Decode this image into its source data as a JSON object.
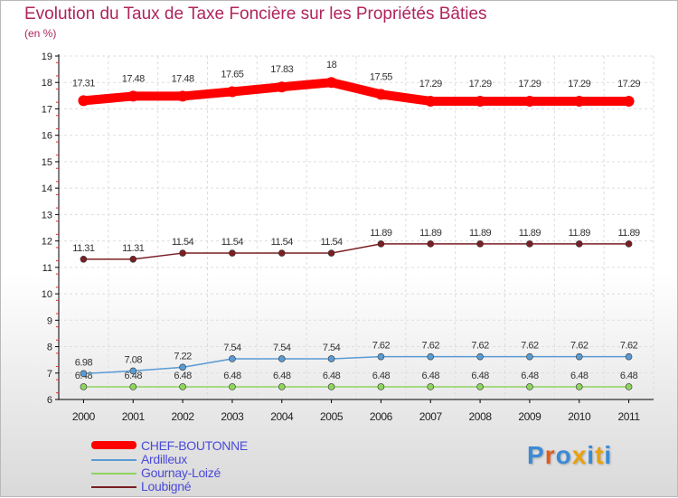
{
  "header": {
    "title": "Evolution du Taux de Taxe Foncière sur les Propriétés Bâties",
    "unit": "(en %)"
  },
  "chart_data": {
    "type": "line",
    "title": "Evolution du Taux de Taxe Foncière sur les Propriétés Bâties",
    "ylabel": "(en %)",
    "xlabel": "",
    "x": [
      "2000",
      "2001",
      "2002",
      "2003",
      "2004",
      "2005",
      "2006",
      "2007",
      "2008",
      "2009",
      "2010",
      "2011"
    ],
    "yticks": [
      "6",
      "7",
      "8",
      "9",
      "10",
      "11",
      "12",
      "13",
      "14",
      "15",
      "16",
      "17",
      "18",
      "19"
    ],
    "ylim": [
      6,
      19
    ],
    "grid": true,
    "legend_position": "bottom-left",
    "series": [
      {
        "name": "CHEF-BOUTONNE",
        "color": "#ff0000",
        "values": [
          17.31,
          17.48,
          17.48,
          17.65,
          17.83,
          18,
          17.55,
          17.29,
          17.29,
          17.29,
          17.29,
          17.29
        ],
        "labels": [
          "17.31",
          "17.48",
          "17.48",
          "17.65",
          "17.83",
          "18",
          "17.55",
          "17.29",
          "17.29",
          "17.29",
          "17.29",
          "17.29"
        ]
      },
      {
        "name": "Ardilleux",
        "color": "#5a9bd4",
        "values": [
          6.98,
          7.08,
          7.22,
          7.54,
          7.54,
          7.54,
          7.62,
          7.62,
          7.62,
          7.62,
          7.62,
          7.62
        ],
        "labels": [
          "6.98",
          "7.08",
          "7.22",
          "7.54",
          "7.54",
          "7.54",
          "7.62",
          "7.62",
          "7.62",
          "7.62",
          "7.62",
          "7.62"
        ]
      },
      {
        "name": "Gournay-Loizé",
        "color": "#8fd460",
        "values": [
          6.48,
          6.48,
          6.48,
          6.48,
          6.48,
          6.48,
          6.48,
          6.48,
          6.48,
          6.48,
          6.48,
          6.48
        ],
        "labels": [
          "6.48",
          "6.48",
          "6.48",
          "6.48",
          "6.48",
          "6.48",
          "6.48",
          "6.48",
          "6.48",
          "6.48",
          "6.48",
          "6.48"
        ]
      },
      {
        "name": "Loubigné",
        "color": "#7a1f24",
        "values": [
          11.31,
          11.31,
          11.54,
          11.54,
          11.54,
          11.54,
          11.89,
          11.89,
          11.89,
          11.89,
          11.89,
          11.89
        ],
        "labels": [
          "11.31",
          "11.31",
          "11.54",
          "11.54",
          "11.54",
          "11.54",
          "11.89",
          "11.89",
          "11.89",
          "11.89",
          "11.89",
          "11.89"
        ]
      }
    ]
  },
  "legend": {
    "items": [
      "CHEF-BOUTONNE",
      "Ardilleux",
      "Gournay-Loizé",
      "Loubigné"
    ]
  },
  "logo": {
    "text": "Proxiti",
    "letter_colors": [
      "#3a8ad6",
      "#e05a1e",
      "#3a8ad6",
      "#e8a10e",
      "#3a8ad6",
      "#e8a10e",
      "#3a8ad6"
    ]
  }
}
